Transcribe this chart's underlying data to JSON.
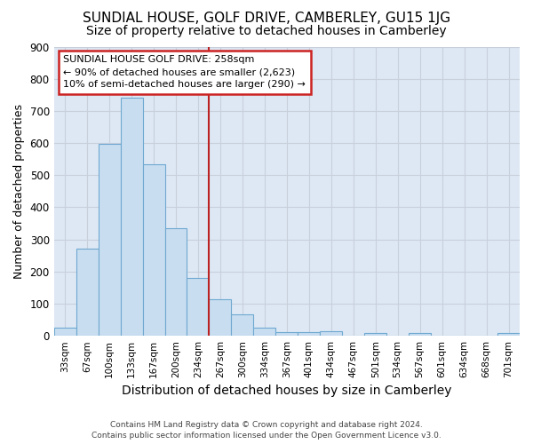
{
  "title": "SUNDIAL HOUSE, GOLF DRIVE, CAMBERLEY, GU15 1JG",
  "subtitle": "Size of property relative to detached houses in Camberley",
  "xlabel": "Distribution of detached houses by size in Camberley",
  "ylabel": "Number of detached properties",
  "categories": [
    "33sqm",
    "67sqm",
    "100sqm",
    "133sqm",
    "167sqm",
    "200sqm",
    "234sqm",
    "267sqm",
    "300sqm",
    "334sqm",
    "367sqm",
    "401sqm",
    "434sqm",
    "467sqm",
    "501sqm",
    "534sqm",
    "567sqm",
    "601sqm",
    "634sqm",
    "668sqm",
    "701sqm"
  ],
  "bar_values": [
    25,
    272,
    597,
    740,
    535,
    335,
    180,
    115,
    68,
    25,
    12,
    12,
    15,
    0,
    8,
    0,
    8,
    0,
    0,
    0,
    8
  ],
  "bar_color": "#c8ddf0",
  "bar_edge_color": "#6fa8d0",
  "ylim": [
    0,
    900
  ],
  "yticks": [
    0,
    100,
    200,
    300,
    400,
    500,
    600,
    700,
    800,
    900
  ],
  "grid_color": "#c8d0dc",
  "bg_color": "#dde8f4",
  "vline_x_index": 7,
  "vline_color": "#bb2222",
  "annotation_line1": "SUNDIAL HOUSE GOLF DRIVE: 258sqm",
  "annotation_line2": "← 90% of detached houses are smaller (2,623)",
  "annotation_line3": "10% of semi-detached houses are larger (290) →",
  "annotation_box_color": "#ffffff",
  "annotation_box_edge": "#cc2222",
  "title_fontsize": 11,
  "subtitle_fontsize": 10,
  "ylabel_fontsize": 9,
  "xlabel_fontsize": 10,
  "footer_line1": "Contains HM Land Registry data © Crown copyright and database right 2024.",
  "footer_line2": "Contains public sector information licensed under the Open Government Licence v3.0."
}
